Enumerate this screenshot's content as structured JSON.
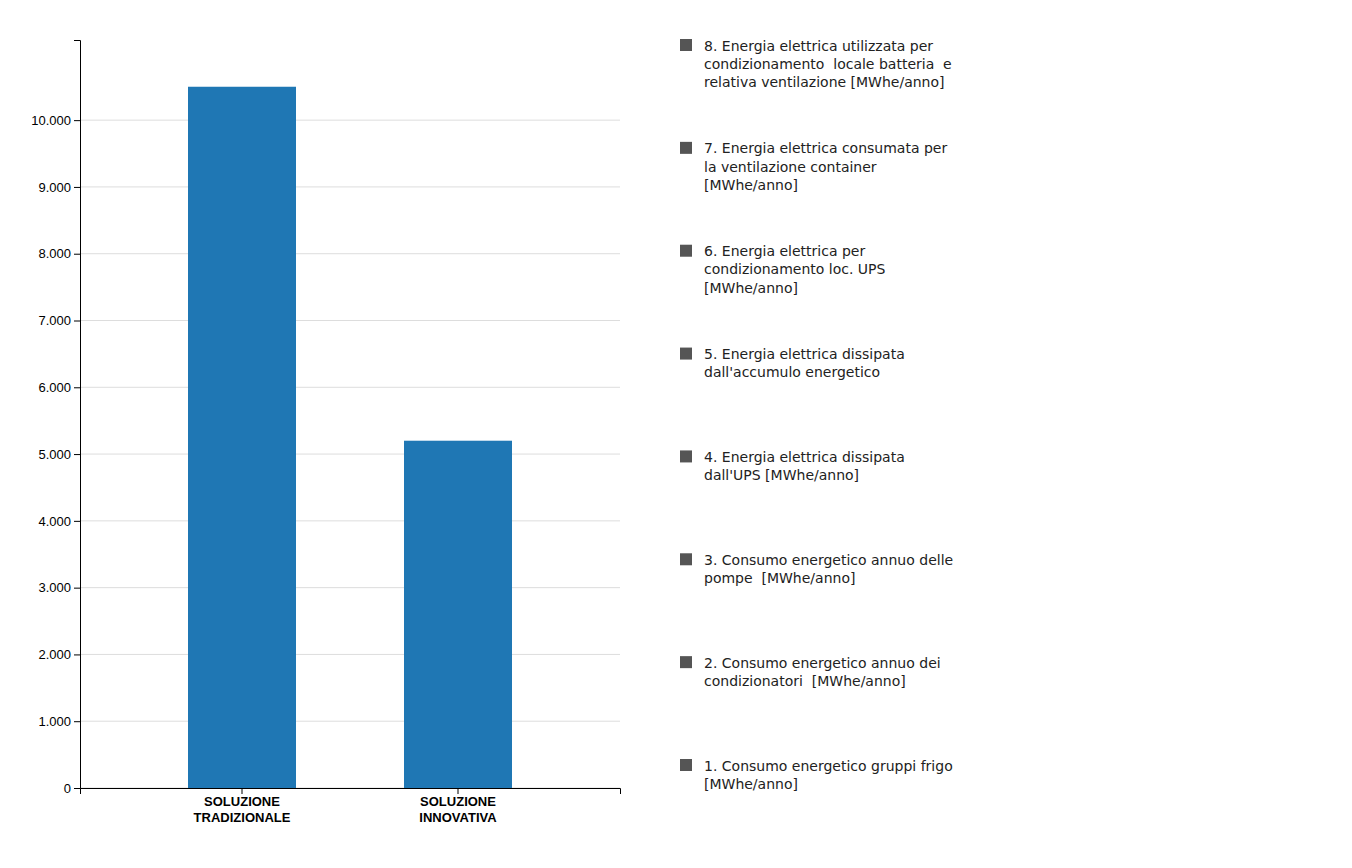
{
  "chart_data": {
    "type": "bar",
    "categories": [
      "SOLUZIONE\nTRADIZIONALE",
      "SOLUZIONE\nINNOVATIVA"
    ],
    "values": [
      10500,
      5200
    ],
    "ylim": [
      0,
      11200
    ],
    "yticks": [
      0,
      {
        "value": 1000,
        "label": "1.000"
      },
      {
        "value": 2000,
        "label": "2.000"
      },
      {
        "value": 3000,
        "label": "3.000"
      },
      {
        "value": 4000,
        "label": "4.000"
      },
      {
        "value": 5000,
        "label": "5.000"
      },
      {
        "value": 6000,
        "label": "6.000"
      },
      {
        "value": 7000,
        "label": "7.000"
      },
      {
        "value": 8000,
        "label": "8.000"
      },
      {
        "value": 9000,
        "label": "9.000"
      },
      {
        "value": 10000,
        "label": "10.000"
      }
    ],
    "grid": true,
    "annotations": [
      "8. Energia elettrica utilizzata per\ncondizionamento  locale batteria  e\nrelativa ventilazione [MWhe/anno]",
      "7. Energia elettrica consumata per\nla ventilazione container\n[MWhe/anno]",
      "6. Energia elettrica per\ncondizionamento loc. UPS\n[MWhe/anno]",
      "5. Energia elettrica dissipata\ndall'accumulo energetico",
      "4. Energia elettrica dissipata\ndall'UPS [MWhe/anno]",
      "3. Consumo energetico annuo delle\npompe  [MWhe/anno]",
      "2. Consumo energetico annuo dei\ncondizionatori  [MWhe/anno]",
      "1. Consumo energetico gruppi frigo\n[MWhe/anno]"
    ]
  }
}
